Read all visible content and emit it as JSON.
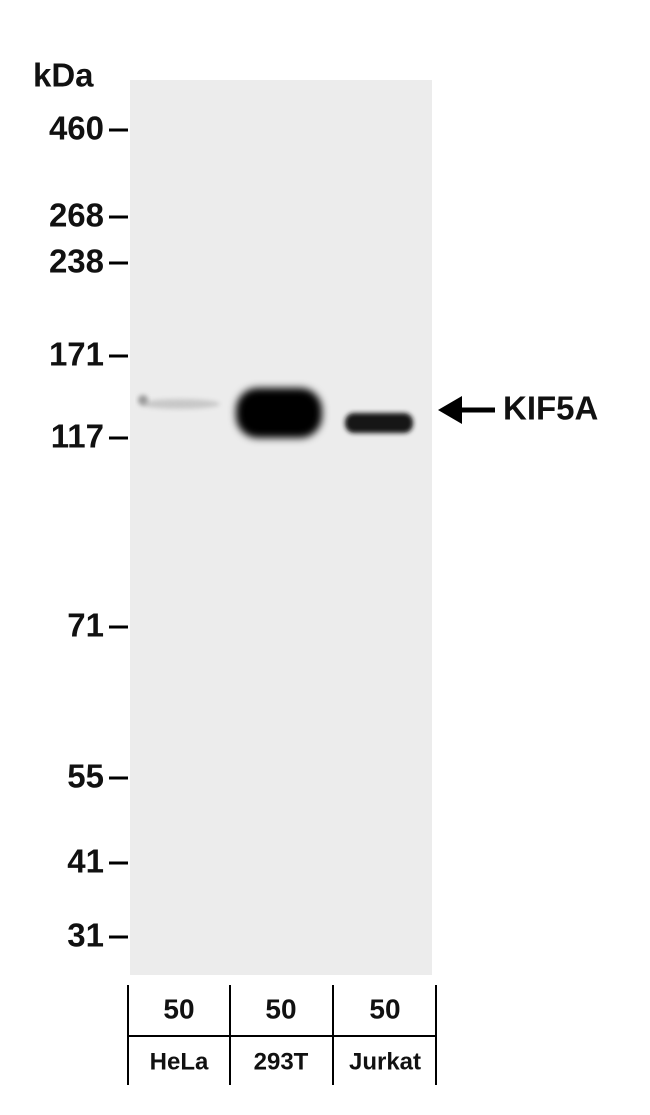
{
  "unit": "kDa",
  "markers": [
    460,
    268,
    238,
    171,
    117,
    71,
    55,
    41,
    31
  ],
  "target": "KIF5A",
  "lanes": [
    {
      "load": 50,
      "name": "HeLa"
    },
    {
      "load": 50,
      "name": "293T"
    },
    {
      "load": 50,
      "name": "Jurkat"
    }
  ]
}
